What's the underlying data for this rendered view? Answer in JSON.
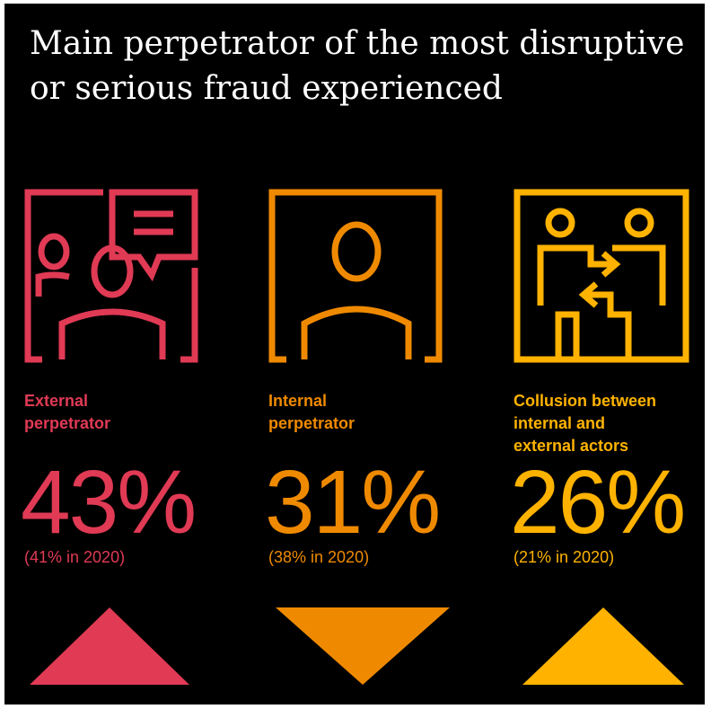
{
  "title": {
    "line1": "Main perpetrator of the most disruptive",
    "line2": "or serious fraud experienced"
  },
  "columns": [
    {
      "label_lines": [
        "External",
        "perpetrator"
      ],
      "percent": "43%",
      "previous": "(41% in 2020)",
      "value": 43,
      "previous_value": 41,
      "trend": "up",
      "color": "#e03a55",
      "icon": "two-people-speech-bubble-icon"
    },
    {
      "label_lines": [
        "Internal",
        "perpetrator"
      ],
      "percent": "31%",
      "previous": "(38% in 2020)",
      "value": 31,
      "previous_value": 38,
      "trend": "down",
      "color": "#ef8a00",
      "icon": "person-in-frame-icon"
    },
    {
      "label_lines": [
        "Collusion between",
        "internal and",
        "external actors"
      ],
      "percent": "26%",
      "previous": "(21% in 2020)",
      "value": 26,
      "previous_value": 21,
      "trend": "up",
      "color": "#ffb300",
      "icon": "two-people-exchange-arrows-icon"
    }
  ]
}
